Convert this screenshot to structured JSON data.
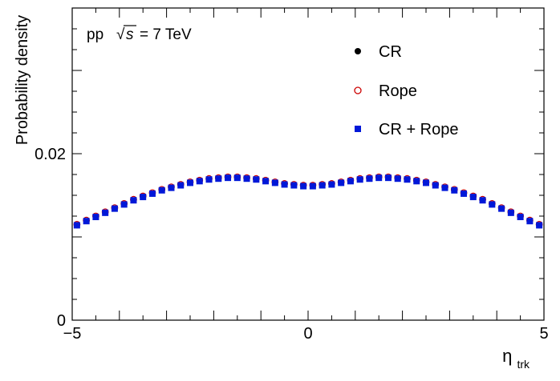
{
  "chart_data": {
    "type": "scatter",
    "annotation": {
      "pp": "pp",
      "sqrt": "√",
      "s": "s",
      "energy": "= 7 TeV"
    },
    "ylabel": "Probability density",
    "xlabel_main": "η",
    "xlabel_sub": "trk",
    "xlim": [
      -5,
      5
    ],
    "ylim": [
      0,
      0.0375
    ],
    "x_ticks": [
      {
        "value": -5,
        "label": "−5"
      },
      {
        "value": 0,
        "label": "0"
      },
      {
        "value": 5,
        "label": "5"
      }
    ],
    "y_ticks": [
      {
        "value": 0,
        "label": "0"
      },
      {
        "value": 0.02,
        "label": "0.02"
      }
    ],
    "legend_position": "top-right",
    "series": [
      {
        "name": "CR",
        "marker": "filled-circle",
        "color": "#000000",
        "x": [
          -4.9,
          -4.7,
          -4.5,
          -4.3,
          -4.1,
          -3.9,
          -3.7,
          -3.5,
          -3.3,
          -3.1,
          -2.9,
          -2.7,
          -2.5,
          -2.3,
          -2.1,
          -1.9,
          -1.7,
          -1.5,
          -1.3,
          -1.1,
          -0.9,
          -0.7,
          -0.5,
          -0.3,
          -0.1,
          0.1,
          0.3,
          0.5,
          0.7,
          0.9,
          1.1,
          1.3,
          1.5,
          1.7,
          1.9,
          2.1,
          2.3,
          2.5,
          2.7,
          2.9,
          3.1,
          3.3,
          3.5,
          3.7,
          3.9,
          4.1,
          4.3,
          4.5,
          4.7,
          4.9
        ],
        "y": [
          0.0114,
          0.0119,
          0.0124,
          0.0129,
          0.0134,
          0.0139,
          0.0144,
          0.0148,
          0.0152,
          0.0156,
          0.0159,
          0.0162,
          0.0165,
          0.0167,
          0.0169,
          0.017,
          0.0171,
          0.0171,
          0.017,
          0.0169,
          0.0167,
          0.0165,
          0.0163,
          0.0162,
          0.0161,
          0.0161,
          0.0162,
          0.0163,
          0.0165,
          0.0167,
          0.0169,
          0.017,
          0.0171,
          0.0171,
          0.017,
          0.0169,
          0.0167,
          0.0165,
          0.0162,
          0.0159,
          0.0156,
          0.0152,
          0.0148,
          0.0144,
          0.0139,
          0.0134,
          0.0129,
          0.0124,
          0.0119,
          0.0114
        ]
      },
      {
        "name": "Rope",
        "marker": "open-circle",
        "color": "#cc0000",
        "x": [
          -4.9,
          -4.7,
          -4.5,
          -4.3,
          -4.1,
          -3.9,
          -3.7,
          -3.5,
          -3.3,
          -3.1,
          -2.9,
          -2.7,
          -2.5,
          -2.3,
          -2.1,
          -1.9,
          -1.7,
          -1.5,
          -1.3,
          -1.1,
          -0.9,
          -0.7,
          -0.5,
          -0.3,
          -0.1,
          0.1,
          0.3,
          0.5,
          0.7,
          0.9,
          1.1,
          1.3,
          1.5,
          1.7,
          1.9,
          2.1,
          2.3,
          2.5,
          2.7,
          2.9,
          3.1,
          3.3,
          3.5,
          3.7,
          3.9,
          4.1,
          4.3,
          4.5,
          4.7,
          4.9
        ],
        "y": [
          0.0115,
          0.012,
          0.0125,
          0.013,
          0.0135,
          0.014,
          0.0145,
          0.0149,
          0.0153,
          0.0157,
          0.016,
          0.0163,
          0.0166,
          0.0168,
          0.017,
          0.0171,
          0.0172,
          0.0172,
          0.0171,
          0.017,
          0.0168,
          0.0166,
          0.0164,
          0.0163,
          0.0162,
          0.0162,
          0.0163,
          0.0164,
          0.0166,
          0.0168,
          0.017,
          0.0171,
          0.0172,
          0.0172,
          0.0171,
          0.017,
          0.0168,
          0.0166,
          0.0163,
          0.016,
          0.0157,
          0.0153,
          0.0149,
          0.0145,
          0.014,
          0.0135,
          0.013,
          0.0125,
          0.012,
          0.0115
        ]
      },
      {
        "name": "CR + Rope",
        "marker": "filled-square",
        "color": "#0018d8",
        "x": [
          -4.9,
          -4.7,
          -4.5,
          -4.3,
          -4.1,
          -3.9,
          -3.7,
          -3.5,
          -3.3,
          -3.1,
          -2.9,
          -2.7,
          -2.5,
          -2.3,
          -2.1,
          -1.9,
          -1.7,
          -1.5,
          -1.3,
          -1.1,
          -0.9,
          -0.7,
          -0.5,
          -0.3,
          -0.1,
          0.1,
          0.3,
          0.5,
          0.7,
          0.9,
          1.1,
          1.3,
          1.5,
          1.7,
          1.9,
          2.1,
          2.3,
          2.5,
          2.7,
          2.9,
          3.1,
          3.3,
          3.5,
          3.7,
          3.9,
          4.1,
          4.3,
          4.5,
          4.7,
          4.9
        ],
        "y": [
          0.0114,
          0.0119,
          0.0124,
          0.0129,
          0.0134,
          0.0139,
          0.0144,
          0.0148,
          0.0152,
          0.0156,
          0.0159,
          0.0162,
          0.0165,
          0.0167,
          0.0169,
          0.017,
          0.0171,
          0.0171,
          0.017,
          0.0169,
          0.0167,
          0.0165,
          0.0163,
          0.0162,
          0.0161,
          0.0161,
          0.0162,
          0.0163,
          0.0165,
          0.0167,
          0.0169,
          0.017,
          0.0171,
          0.0171,
          0.017,
          0.0169,
          0.0167,
          0.0165,
          0.0162,
          0.0159,
          0.0156,
          0.0152,
          0.0148,
          0.0144,
          0.0139,
          0.0134,
          0.0129,
          0.0124,
          0.0119,
          0.0114
        ]
      }
    ]
  }
}
